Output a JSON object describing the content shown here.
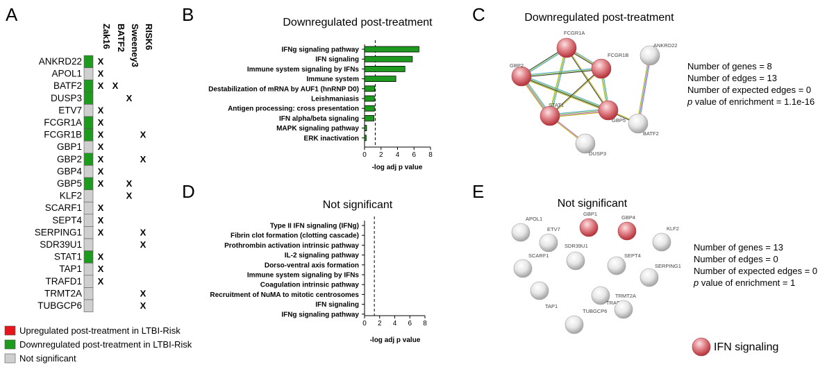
{
  "panels": {
    "a": "A",
    "b": "B",
    "c": "C",
    "d": "D",
    "e": "E"
  },
  "heatmap": {
    "columns": [
      "Zak16",
      "BATF2",
      "Sweeney3",
      "RISK6"
    ],
    "colors": {
      "up": "#e8141b",
      "down": "#1e9a1e",
      "ns": "#cfcfcf"
    },
    "genes": [
      {
        "name": "ANKRD22",
        "status": "down",
        "marks": [
          "X",
          "",
          "",
          ""
        ]
      },
      {
        "name": "APOL1",
        "status": "ns",
        "marks": [
          "X",
          "",
          "",
          ""
        ]
      },
      {
        "name": "BATF2",
        "status": "down",
        "marks": [
          "X",
          "X",
          "",
          ""
        ]
      },
      {
        "name": "DUSP3",
        "status": "down",
        "marks": [
          "",
          "",
          "X",
          ""
        ]
      },
      {
        "name": "ETV7",
        "status": "ns",
        "marks": [
          "X",
          "",
          "",
          ""
        ]
      },
      {
        "name": "FCGR1A",
        "status": "down",
        "marks": [
          "X",
          "",
          "",
          ""
        ]
      },
      {
        "name": "FCGR1B",
        "status": "down",
        "marks": [
          "X",
          "",
          "",
          "X"
        ]
      },
      {
        "name": "GBP1",
        "status": "ns",
        "marks": [
          "X",
          "",
          "",
          ""
        ]
      },
      {
        "name": "GBP2",
        "status": "down",
        "marks": [
          "X",
          "",
          "",
          "X"
        ]
      },
      {
        "name": "GBP4",
        "status": "ns",
        "marks": [
          "X",
          "",
          "",
          ""
        ]
      },
      {
        "name": "GBP5",
        "status": "down",
        "marks": [
          "X",
          "",
          "X",
          ""
        ]
      },
      {
        "name": "KLF2",
        "status": "ns",
        "marks": [
          "",
          "",
          "X",
          ""
        ]
      },
      {
        "name": "SCARF1",
        "status": "ns",
        "marks": [
          "X",
          "",
          "",
          ""
        ]
      },
      {
        "name": "SEPT4",
        "status": "ns",
        "marks": [
          "X",
          "",
          "",
          ""
        ]
      },
      {
        "name": "SERPING1",
        "status": "ns",
        "marks": [
          "X",
          "",
          "",
          "X"
        ]
      },
      {
        "name": "SDR39U1",
        "status": "ns",
        "marks": [
          "",
          "",
          "",
          "X"
        ]
      },
      {
        "name": "STAT1",
        "status": "down",
        "marks": [
          "X",
          "",
          "",
          ""
        ]
      },
      {
        "name": "TAP1",
        "status": "ns",
        "marks": [
          "X",
          "",
          "",
          ""
        ]
      },
      {
        "name": "TRAFD1",
        "status": "ns",
        "marks": [
          "X",
          "",
          "",
          ""
        ]
      },
      {
        "name": "TRMT2A",
        "status": "ns",
        "marks": [
          "",
          "",
          "",
          "X"
        ]
      },
      {
        "name": "TUBGCP6",
        "status": "ns",
        "marks": [
          "",
          "",
          "",
          "X"
        ]
      }
    ],
    "legend": [
      {
        "label": "Upregulated post-treatment in LTBI-Risk",
        "status": "up"
      },
      {
        "label": "Downregulated post-treatment in LTBI-Risk",
        "status": "down"
      },
      {
        "label": "Not significant",
        "status": "ns"
      }
    ]
  },
  "chart_data": [
    {
      "type": "bar",
      "orientation": "horizontal",
      "title": "Downregulated post-treatment",
      "xlabel": "-log adj p value",
      "xlim": [
        0,
        8
      ],
      "xticks": [
        0,
        2,
        4,
        6,
        8
      ],
      "threshold": 1.3,
      "bar_color": "#1e9a1e",
      "categories": [
        "IFNg signaling pathway",
        "IFN signaling",
        "Immune system signaling by IFNs",
        "Immune system",
        "Destabilization of mRNA by AUF1 (hnRNP D0)",
        "Leishmaniasis",
        "Antigen processing: cross presentation",
        "IFN alpha/beta signaling",
        "MAPK signaling pathway",
        "ERK inactivation"
      ],
      "values": [
        6.6,
        5.8,
        4.9,
        3.8,
        1.25,
        1.2,
        1.2,
        1.15,
        0.25,
        0.2
      ]
    },
    {
      "type": "bar",
      "orientation": "horizontal",
      "title": "Not significant",
      "xlabel": "-log adj p value",
      "xlim": [
        0,
        8
      ],
      "xticks": [
        0,
        2,
        4,
        6,
        8
      ],
      "threshold": 1.3,
      "bar_color": "#1e9a1e",
      "categories": [
        "Type II IFN signaling (IFNg)",
        "Fibrin clot formation (clotting cascade)",
        "Prothrombin activation intrinsic pathway",
        "IL-2 signaling pathway",
        "Dorso-ventral axis formation",
        "Immune system signaling by IFNs",
        "Coagulation intrinsic pathway",
        "Recruitment of NuMA to mitotic centrosomes",
        "IFN signaling",
        "IFNg signaling pathway"
      ],
      "values": [
        0,
        0,
        0,
        0,
        0,
        0,
        0,
        0,
        0,
        0
      ]
    }
  ],
  "network_c": {
    "title": "Downregulated post-treatment",
    "nodes": [
      "FCGR1A",
      "ANKRD22",
      "GBP2",
      "FCGR1B",
      "STAT1",
      "GBP5",
      "BATF2",
      "DUSP3"
    ],
    "highlighted": [
      "FCGR1A",
      "GBP2",
      "FCGR1B",
      "STAT1",
      "GBP5"
    ],
    "stats": {
      "genes": "Number of genes = 8",
      "edges": "Number of edges = 13",
      "expected": "Number of expected edges = 0",
      "p_italic": "p",
      "p_rest": " value of enrichment = 1.1e-16"
    }
  },
  "network_e": {
    "title": "Not significant",
    "nodes": [
      "APOL1",
      "GBP1",
      "GBP4",
      "KLF2",
      "ETV7",
      "SDR39U1",
      "SEPT4",
      "SCARF1",
      "SERPING1",
      "TAP1",
      "TRAFD1",
      "TRMT2A",
      "TUBGCP6"
    ],
    "highlighted": [
      "GBP1",
      "GBP4"
    ],
    "stats": {
      "genes": "Number of genes = 13",
      "edges": "Number of edges = 0",
      "expected": "Number of expected edges = 0",
      "p_italic": "p",
      "p_rest": " value of enrichment = 1"
    }
  },
  "legend_node": {
    "label": "IFN signaling",
    "color": "#d9545b"
  }
}
